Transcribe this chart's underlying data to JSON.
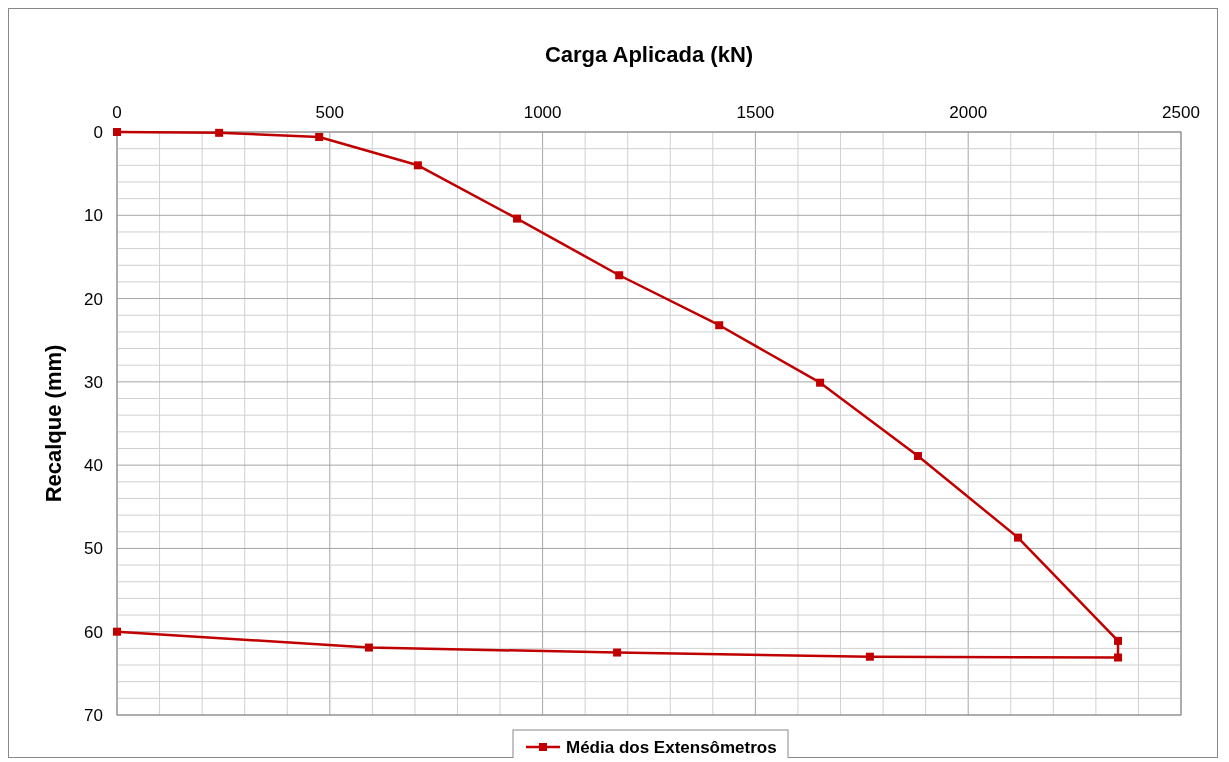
{
  "chart_data": {
    "type": "line",
    "xlabel": "Carga Aplicada (kN)",
    "ylabel": "Recalque (mm)",
    "x": [
      0,
      240,
      475,
      707,
      940,
      1180,
      1415,
      1652,
      1882,
      2117,
      2352,
      2352,
      1769,
      1175,
      592,
      0
    ],
    "series": [
      {
        "name": "Média dos Extensômetros",
        "color": "#c00000",
        "values": [
          0,
          0.1,
          0.6,
          4.0,
          10.4,
          17.2,
          23.2,
          30.1,
          38.9,
          48.7,
          61.1,
          63.1,
          63.0,
          62.5,
          61.9,
          60.0
        ]
      }
    ],
    "xlim": [
      0,
      2500
    ],
    "ylim": [
      70,
      0
    ],
    "xticks": [
      0,
      {
        "value": 100,
        "label": null
      },
      {
        "value": 200,
        "label": null
      },
      {
        "value": 300,
        "label": null
      },
      {
        "value": 400,
        "label": null
      },
      500,
      {
        "value": 600,
        "label": null
      },
      {
        "value": 700,
        "label": null
      },
      {
        "value": 800,
        "label": null
      },
      {
        "value": 900,
        "label": null
      },
      1000,
      {
        "value": 1100,
        "label": null
      },
      {
        "value": 1200,
        "label": null
      },
      {
        "value": 1300,
        "label": null
      },
      {
        "value": 1400,
        "label": null
      },
      1500,
      {
        "value": 1600,
        "label": null
      },
      {
        "value": 1700,
        "label": null
      },
      {
        "value": 1800,
        "label": null
      },
      {
        "value": 1900,
        "label": null
      },
      2000,
      {
        "value": 2100,
        "label": null
      },
      {
        "value": 2200,
        "label": null
      },
      {
        "value": 2300,
        "label": null
      },
      {
        "value": 2400,
        "label": null
      },
      2500
    ],
    "yticks": [
      0,
      {
        "value": 2,
        "label": null
      },
      {
        "value": 4,
        "label": null
      },
      {
        "value": 6,
        "label": null
      },
      {
        "value": 8,
        "label": null
      },
      10,
      {
        "value": 12,
        "label": null
      },
      {
        "value": 14,
        "label": null
      },
      {
        "value": 16,
        "label": null
      },
      {
        "value": 18,
        "label": null
      },
      20,
      {
        "value": 22,
        "label": null
      },
      {
        "value": 24,
        "label": null
      },
      {
        "value": 26,
        "label": null
      },
      {
        "value": 28,
        "label": null
      },
      30,
      {
        "value": 32,
        "label": null
      },
      {
        "value": 34,
        "label": null
      },
      {
        "value": 36,
        "label": null
      },
      {
        "value": 38,
        "label": null
      },
      40,
      {
        "value": 42,
        "label": null
      },
      {
        "value": 44,
        "label": null
      },
      {
        "value": 46,
        "label": null
      },
      {
        "value": 48,
        "label": null
      },
      50,
      {
        "value": 52,
        "label": null
      },
      {
        "value": 54,
        "label": null
      },
      {
        "value": 56,
        "label": null
      },
      {
        "value": 58,
        "label": null
      },
      60,
      {
        "value": 62,
        "label": null
      },
      {
        "value": 64,
        "label": null
      },
      {
        "value": 66,
        "label": null
      },
      {
        "value": 68,
        "label": null
      },
      70
    ],
    "grid": true,
    "legend": "bottom",
    "marker": "square",
    "line_style": "solid"
  }
}
